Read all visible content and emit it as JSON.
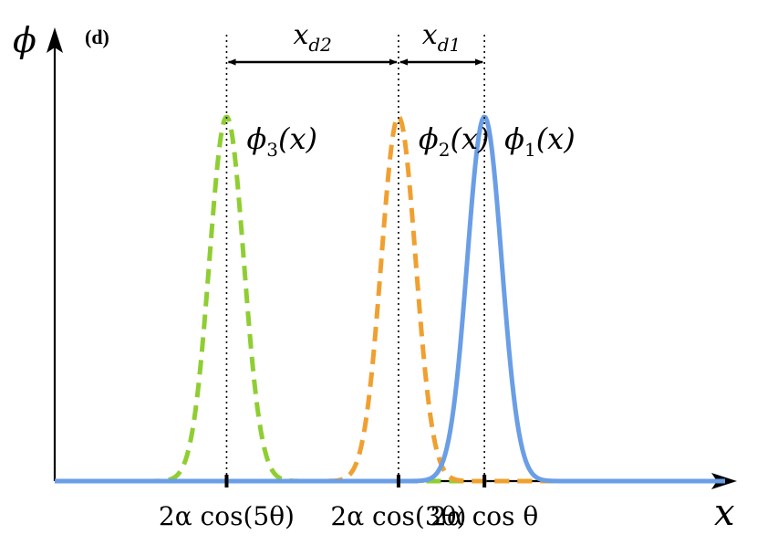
{
  "chart_data": {
    "type": "line",
    "panel_label": "(d)",
    "ylabel": "ϕ",
    "xlabel": "x",
    "series": [
      {
        "label_base": "ϕ",
        "label_sub": "1",
        "label_arg": "(x)",
        "color": "#6a9ee6",
        "style": "solid",
        "center": 2.0,
        "width": 0.2,
        "amplitude": 1.0
      },
      {
        "label_base": "ϕ",
        "label_sub": "2",
        "label_arg": "(x)",
        "color": "#f0a030",
        "style": "dashed",
        "center": 1.0,
        "width": 0.2,
        "amplitude": 1.0
      },
      {
        "label_base": "ϕ",
        "label_sub": "3",
        "label_arg": "(x)",
        "color": "#8fce32",
        "style": "dashed",
        "center": -1.0,
        "width": 0.2,
        "amplitude": 1.0
      }
    ],
    "xticks": [
      {
        "value": -1.0,
        "label": "2α cos(5θ)"
      },
      {
        "value": 1.0,
        "label": "2α cos(3θ)"
      },
      {
        "value": 2.0,
        "label": "2α cos θ"
      }
    ],
    "distance_arrows": [
      {
        "from": 1.0,
        "to": 2.0,
        "label_base": "x",
        "label_sub": "d1"
      },
      {
        "from": -1.0,
        "to": 1.0,
        "label_base": "x",
        "label_sub": "d2"
      }
    ],
    "xlim": [
      -3.0,
      4.8
    ],
    "ylim": [
      0,
      1.2
    ],
    "grid": false,
    "legend": "none"
  }
}
